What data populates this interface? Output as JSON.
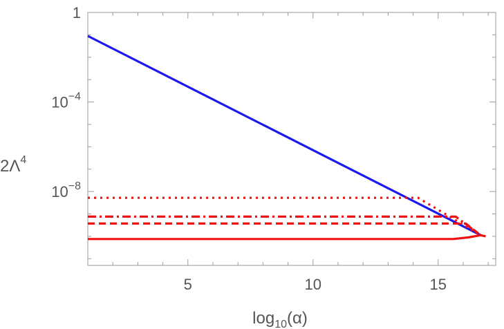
{
  "chart_data": {
    "type": "line",
    "title": "",
    "xlabel": {
      "base": "log",
      "sub": "10",
      "arg": "(α)"
    },
    "ylabel": {
      "base": "2Λ",
      "sup": "4"
    },
    "xlim": [
      1,
      17.3
    ],
    "ylim": [
      -11.3,
      0
    ],
    "yscale": "log10",
    "grid": false,
    "x_ticks": [
      {
        "value": 5,
        "label": "5"
      },
      {
        "value": 10,
        "label": "10"
      },
      {
        "value": 15,
        "label": "15"
      }
    ],
    "y_ticks": [
      {
        "exponent": 0,
        "base": "1",
        "sup": ""
      },
      {
        "exponent": -4,
        "base": "10",
        "sup": "−4"
      },
      {
        "exponent": -8,
        "base": "10",
        "sup": "−8"
      }
    ],
    "series": [
      {
        "color": "#1a1aee",
        "dash": "solid",
        "points": [
          [
            1,
            -1.05
          ],
          [
            16.7,
            -9.95
          ]
        ]
      },
      {
        "color": "#ee1111",
        "dash": "dotted",
        "points": [
          [
            1,
            -8.28
          ],
          [
            14.2,
            -8.28
          ],
          [
            16.7,
            -9.95
          ]
        ]
      },
      {
        "color": "#ee1111",
        "dash": "dashdot",
        "points": [
          [
            1,
            -9.12
          ],
          [
            15.7,
            -9.12
          ],
          [
            16.7,
            -9.95
          ]
        ]
      },
      {
        "color": "#ee1111",
        "dash": "dashed",
        "points": [
          [
            1,
            -9.43
          ],
          [
            16.1,
            -9.43
          ],
          [
            16.7,
            -9.95
          ]
        ]
      },
      {
        "color": "#ee1111",
        "dash": "solid",
        "points": [
          [
            1,
            -10.12
          ],
          [
            15.6,
            -10.12
          ],
          [
            16.2,
            -10.05
          ],
          [
            16.7,
            -9.95
          ],
          [
            16.9,
            -10.0
          ]
        ]
      }
    ]
  }
}
